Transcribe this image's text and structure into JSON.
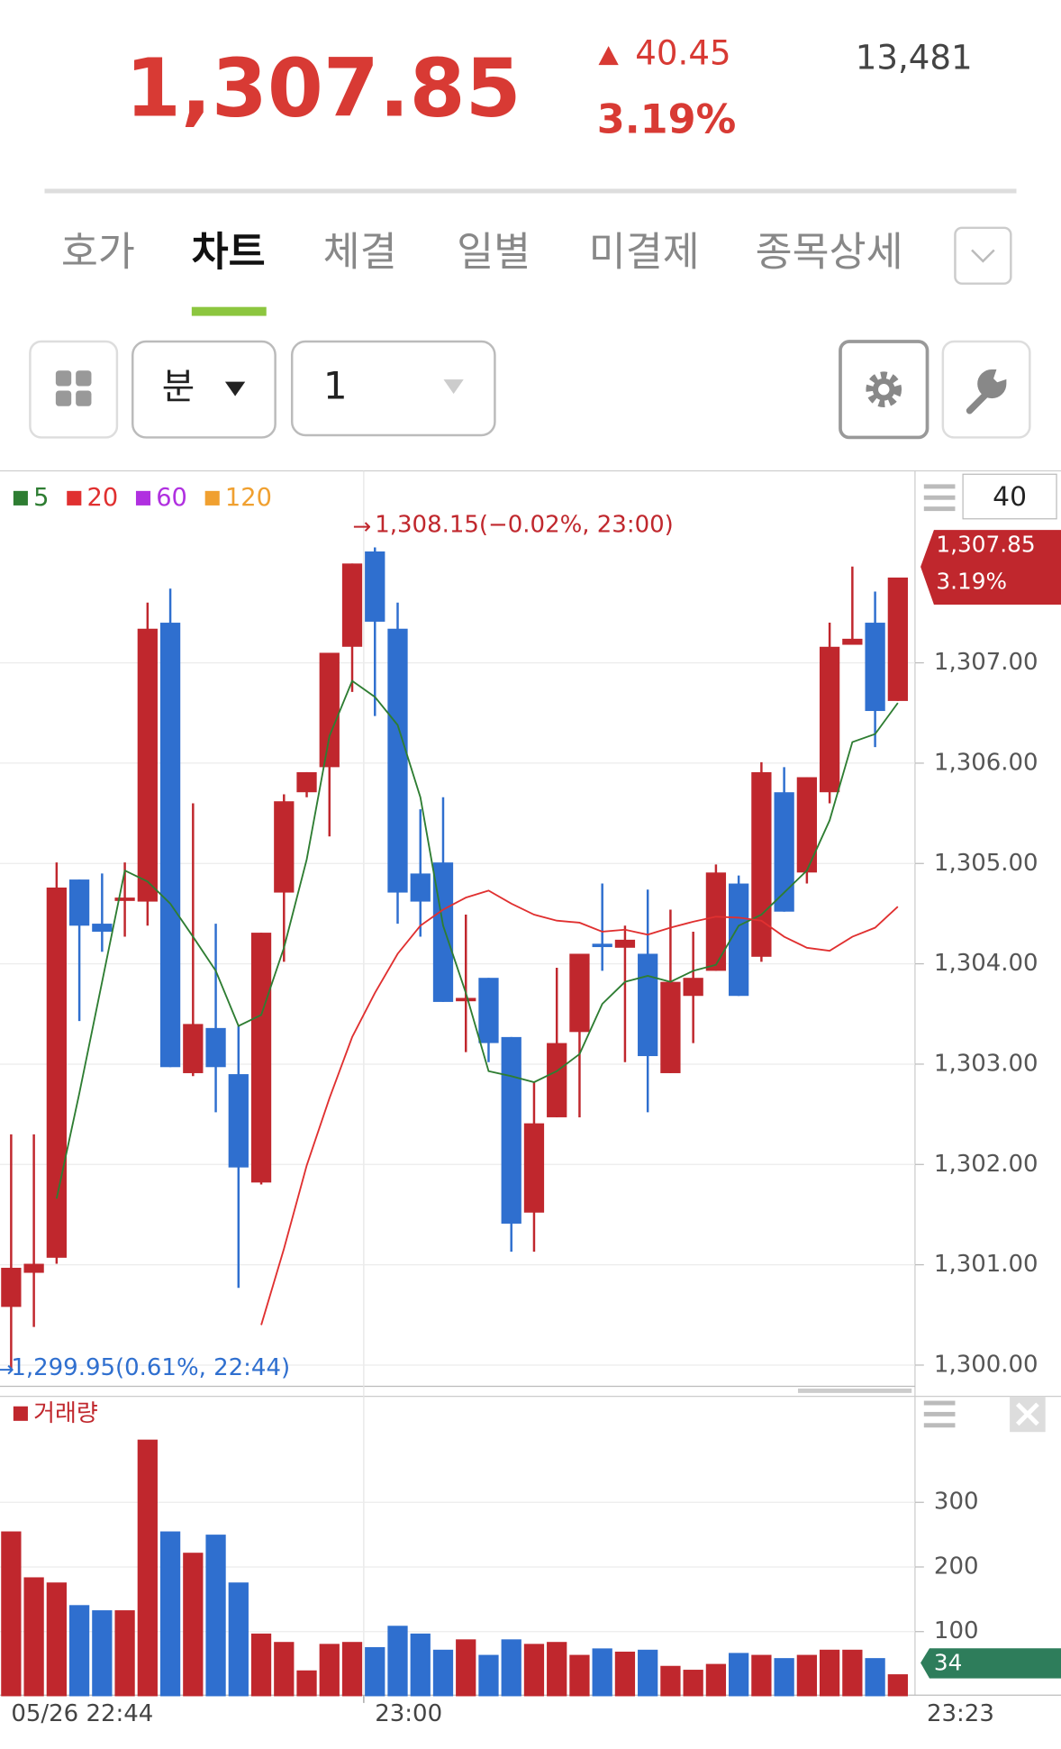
{
  "header": {
    "price": "1,307.85",
    "change": "40.45",
    "change_percent": "3.19%",
    "volume": "13,481"
  },
  "tabs": [
    "호가",
    "차트",
    "체결",
    "일별",
    "미결제",
    "종목상세"
  ],
  "active_tab": 1,
  "controls": {
    "period_unit": "분",
    "period_value": "1",
    "visible_count": 40
  },
  "chart_data": [
    {
      "type": "candlestick",
      "categories": [
        "05/26 22:44",
        null,
        null,
        null,
        null,
        null,
        null,
        null,
        null,
        null,
        null,
        null,
        null,
        null,
        null,
        null,
        "23:00",
        null,
        null,
        null,
        null,
        null,
        null,
        null,
        null,
        null,
        null,
        null,
        null,
        null,
        null,
        null,
        null,
        null,
        null,
        null,
        null,
        null,
        null,
        "23:23"
      ],
      "open": [
        1300.58,
        1300.92,
        1301.07,
        1304.84,
        1304.4,
        1304.64,
        1304.62,
        1307.4,
        1302.91,
        1303.36,
        1302.9,
        1301.82,
        1304.71,
        1305.71,
        1305.96,
        1307.16,
        1308.11,
        1307.34,
        1304.9,
        1305.01,
        1303.64,
        1303.86,
        1303.27,
        1301.52,
        1302.47,
        1303.32,
        1304.2,
        1304.16,
        1304.1,
        1302.91,
        1303.68,
        1303.93,
        1304.8,
        1304.07,
        1305.71,
        1304.91,
        1305.71,
        1307.18,
        1307.4,
        1306.62
      ],
      "high": [
        1302.3,
        1302.3,
        1305.01,
        1304.84,
        1304.9,
        1305.01,
        1307.6,
        1307.74,
        1305.6,
        1304.4,
        1303.38,
        1304.31,
        1305.69,
        1305.91,
        1307.1,
        1307.99,
        1308.15,
        1307.6,
        1305.54,
        1305.66,
        1304.49,
        1303.86,
        1303.27,
        1302.82,
        1303.96,
        1304.1,
        1304.8,
        1304.38,
        1304.74,
        1304.54,
        1304.32,
        1304.99,
        1304.88,
        1306.01,
        1305.96,
        1305.86,
        1307.4,
        1307.96,
        1307.71,
        1307.85
      ],
      "low": [
        1299.95,
        1300.38,
        1301.01,
        1303.43,
        1304.12,
        1304.27,
        1304.38,
        1302.97,
        1302.88,
        1302.52,
        1300.77,
        1301.8,
        1304.02,
        1305.66,
        1305.27,
        1306.71,
        1306.47,
        1304.4,
        1304.27,
        1303.62,
        1303.12,
        1303.02,
        1301.13,
        1301.13,
        1302.47,
        1302.47,
        1303.93,
        1303.02,
        1302.52,
        1302.91,
        1303.21,
        1303.93,
        1303.68,
        1304.02,
        1304.52,
        1304.8,
        1305.6,
        1307.18,
        1306.16,
        1306.62
      ],
      "close": [
        1300.97,
        1301.01,
        1304.76,
        1304.38,
        1304.32,
        1304.66,
        1307.34,
        1302.97,
        1303.4,
        1302.97,
        1301.97,
        1304.31,
        1305.62,
        1305.91,
        1307.1,
        1307.99,
        1307.41,
        1304.71,
        1304.62,
        1303.62,
        1303.66,
        1303.21,
        1301.41,
        1302.41,
        1303.21,
        1304.1,
        1304.18,
        1304.24,
        1303.08,
        1303.82,
        1303.86,
        1304.91,
        1303.68,
        1305.91,
        1304.52,
        1305.86,
        1307.16,
        1307.24,
        1306.52,
        1307.85
      ],
      "up_color": "#c0272d",
      "down_color": "#2f6fcf",
      "series": [
        {
          "name": "5",
          "color": "#2e7d32",
          "values": [
            null,
            null,
            1301.66,
            1302.71,
            1303.82,
            1304.93,
            1304.82,
            1304.6,
            1304.27,
            1303.93,
            1303.38,
            1303.49,
            1304.16,
            1305.04,
            1306.27,
            1306.82,
            1306.66,
            1306.38,
            1305.66,
            1304.38,
            1303.71,
            1302.93,
            1302.88,
            1302.82,
            1302.93,
            1303.1,
            1303.6,
            1303.82,
            1303.88,
            1303.82,
            1303.93,
            1303.99,
            1304.38,
            1304.49,
            1304.71,
            1304.93,
            1305.43,
            1306.21,
            1306.29,
            1306.6
          ]
        },
        {
          "name": "20",
          "color": "#e03030",
          "values": [
            null,
            null,
            null,
            null,
            null,
            null,
            null,
            null,
            null,
            null,
            null,
            1300.4,
            1301.16,
            1301.99,
            1302.66,
            1303.27,
            1303.71,
            1304.1,
            1304.38,
            1304.54,
            1304.66,
            1304.73,
            1304.6,
            1304.49,
            1304.43,
            1304.41,
            1304.32,
            1304.34,
            1304.29,
            1304.36,
            1304.42,
            1304.47,
            1304.46,
            1304.43,
            1304.27,
            1304.16,
            1304.13,
            1304.27,
            1304.36,
            1304.57
          ]
        },
        {
          "name": "60",
          "color": "#b030e0"
        },
        {
          "name": "120",
          "color": "#f0a030"
        }
      ],
      "ylim": [
        1299.8,
        1308.88
      ],
      "yticks": [
        {
          "value": 1300,
          "label": "1,300.00"
        },
        {
          "value": 1301,
          "label": "1,301.00"
        },
        {
          "value": 1302,
          "label": "1,302.00"
        },
        {
          "value": 1303,
          "label": "1,303.00"
        },
        {
          "value": 1304,
          "label": "1,304.00"
        },
        {
          "value": 1305,
          "label": "1,305.00"
        },
        {
          "value": 1306,
          "label": "1,306.00"
        },
        {
          "value": 1307,
          "label": "1,307.00"
        }
      ],
      "grid": true,
      "annotations": {
        "high": "1,308.15(−0.02%, 23:00)",
        "low": "1,299.95(0.61%, 22:44)"
      },
      "last_price_label": "1,307.85",
      "last_change_label": "3.19%"
    },
    {
      "type": "bar",
      "series": [
        {
          "name": "거래량",
          "color": "#c0272d",
          "values": [
            255,
            184,
            176,
            141,
            133,
            133,
            397,
            255,
            222,
            250,
            176,
            97,
            84,
            40,
            81,
            84,
            76,
            109,
            97,
            72,
            88,
            64,
            88,
            81,
            84,
            64,
            74,
            69,
            72,
            47,
            41,
            50,
            67,
            64,
            59,
            64,
            72,
            72,
            59,
            34
          ]
        }
      ],
      "ylim": [
        0,
        464
      ],
      "yticks": [
        100,
        200,
        300
      ],
      "grid": true,
      "last_color": "#2e7d5b"
    }
  ]
}
